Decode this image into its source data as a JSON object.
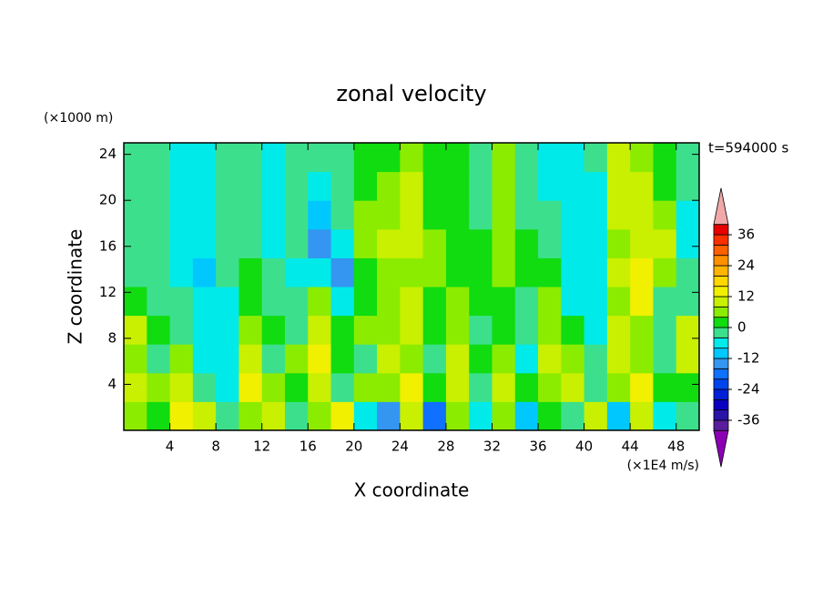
{
  "chart_data": {
    "type": "contour",
    "title": "zonal velocity",
    "x_label": "X coordinate",
    "y_label": "Z coordinate",
    "y_units": "(×1000 m)",
    "value_units": "(×1E4 m/s)",
    "annotation": "t=594000 s",
    "xlim": [
      0,
      50
    ],
    "ylim": [
      0,
      25
    ],
    "xticks": [
      4,
      8,
      12,
      16,
      20,
      24,
      28,
      32,
      36,
      40,
      44,
      48
    ],
    "yticks": [
      4,
      8,
      12,
      16,
      20,
      24
    ],
    "x": [
      1,
      3,
      5,
      7,
      9,
      11,
      13,
      15,
      17,
      19,
      21,
      23,
      25,
      27,
      29,
      31,
      33,
      35,
      37,
      39,
      41,
      43,
      45,
      47,
      49
    ],
    "y": [
      1.25,
      3.75,
      6.25,
      8.75,
      11.25,
      13.75,
      16.25,
      18.75,
      21.25,
      23.75
    ],
    "z": [
      [
        4,
        2,
        14,
        8,
        -4,
        6,
        10,
        -2,
        4,
        12,
        -8,
        -16,
        8,
        -20,
        4,
        -8,
        6,
        -12,
        2,
        -4,
        8,
        -12,
        10,
        -8,
        -4
      ],
      [
        8,
        4,
        10,
        -4,
        -6,
        12,
        4,
        0,
        10,
        -2,
        6,
        4,
        12,
        0,
        8,
        -4,
        10,
        2,
        6,
        8,
        -4,
        4,
        12,
        2,
        0
      ],
      [
        6,
        -2,
        4,
        -6,
        -8,
        8,
        -2,
        6,
        12,
        2,
        -4,
        8,
        4,
        -2,
        10,
        2,
        6,
        -6,
        8,
        4,
        -2,
        8,
        6,
        -4,
        10
      ],
      [
        10,
        2,
        -4,
        -8,
        -6,
        6,
        2,
        -2,
        8,
        0,
        4,
        6,
        8,
        2,
        4,
        -4,
        2,
        -4,
        6,
        2,
        -6,
        10,
        4,
        -2,
        8
      ],
      [
        0,
        -2,
        -4,
        -8,
        -6,
        2,
        -2,
        -4,
        6,
        -6,
        2,
        4,
        8,
        2,
        4,
        0,
        2,
        -4,
        4,
        -8,
        -6,
        6,
        12,
        -2,
        -4
      ],
      [
        -2,
        -4,
        -8,
        -10,
        -4,
        0,
        -4,
        -6,
        -8,
        -14,
        0,
        4,
        6,
        4,
        0,
        0,
        4,
        2,
        0,
        -6,
        -8,
        8,
        14,
        6,
        -4
      ],
      [
        -2,
        -2,
        -8,
        -8,
        -2,
        -2,
        -6,
        -2,
        -16,
        -8,
        4,
        8,
        10,
        4,
        0,
        2,
        6,
        2,
        -4,
        -6,
        -8,
        6,
        10,
        8,
        -6
      ],
      [
        -2,
        -2,
        -8,
        -6,
        -2,
        -2,
        -6,
        -4,
        -10,
        -4,
        6,
        6,
        10,
        2,
        2,
        -2,
        4,
        -2,
        -4,
        -6,
        -8,
        8,
        10,
        4,
        -6
      ],
      [
        -2,
        -4,
        -8,
        -6,
        -2,
        -4,
        -6,
        -4,
        -6,
        -4,
        2,
        4,
        8,
        2,
        2,
        -2,
        6,
        -4,
        -6,
        -8,
        -6,
        10,
        8,
        2,
        -4
      ],
      [
        -2,
        -2,
        -8,
        -6,
        -2,
        -2,
        -6,
        -4,
        -4,
        -2,
        0,
        2,
        6,
        2,
        0,
        -4,
        4,
        -2,
        -6,
        -8,
        -4,
        8,
        6,
        0,
        -4
      ]
    ],
    "levels": [
      -40,
      -36,
      -32,
      -28,
      -24,
      -20,
      -16,
      -12,
      -8,
      -4,
      0,
      4,
      8,
      12,
      16,
      20,
      24,
      28,
      32,
      36,
      40
    ],
    "colors": [
      "#5a1e9c",
      "#2a14a8",
      "#0a00c0",
      "#0020d8",
      "#0044ec",
      "#1070ff",
      "#3496f0",
      "#00c8ff",
      "#00eaea",
      "#3ce08c",
      "#10dc10",
      "#8cec00",
      "#c8f000",
      "#f0f000",
      "#ffd800",
      "#ffb400",
      "#ff9000",
      "#ff6000",
      "#ff3000",
      "#e60000"
    ],
    "under_color": "#8c00b4",
    "over_color": "#f0a8a8",
    "cbticks": [
      -36,
      -24,
      -12,
      0,
      12,
      24,
      36
    ]
  }
}
